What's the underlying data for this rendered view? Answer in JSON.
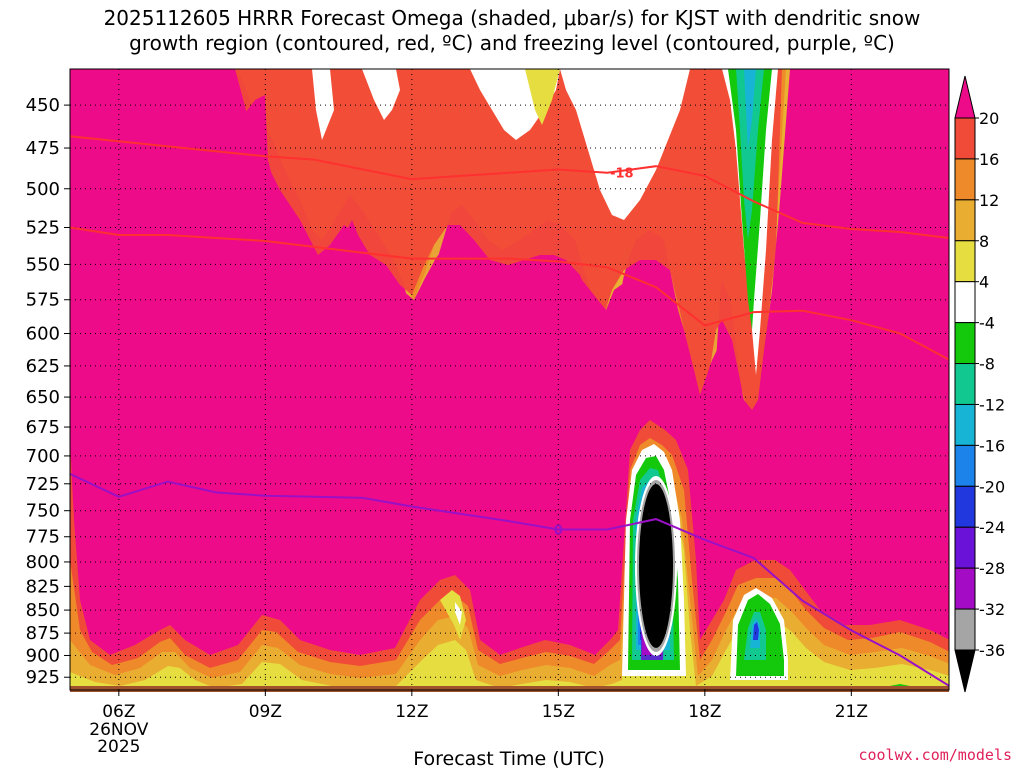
{
  "title_line1": "2025112605 HRRR Forecast Omega (shaded, μbar/s) for KJST with dendritic snow",
  "title_line2": "growth region (contoured, red, ºC) and freezing level (contoured, purple, ºC)",
  "credit": "coolwx.com/models",
  "chart_data": {
    "type": "heatmap",
    "xlabel": "Forecast Time (UTC)",
    "x_ticks": [
      {
        "hour": 6,
        "label": "06Z",
        "sub": [
          "26NOV",
          "2025"
        ]
      },
      {
        "hour": 9,
        "label": "09Z"
      },
      {
        "hour": 12,
        "label": "12Z"
      },
      {
        "hour": 15,
        "label": "15Z"
      },
      {
        "hour": 18,
        "label": "18Z"
      },
      {
        "hour": 21,
        "label": "21Z"
      }
    ],
    "xlim_hours": [
      5,
      23
    ],
    "y_ticks": [
      450,
      475,
      500,
      525,
      550,
      575,
      600,
      625,
      650,
      675,
      700,
      725,
      750,
      775,
      800,
      825,
      850,
      875,
      900,
      925
    ],
    "y_scale": "pressure (inverted, log)",
    "ylim_hPa": [
      430,
      940
    ],
    "grid": true,
    "colorbar": {
      "levels": [
        -36,
        -32,
        -28,
        -24,
        -20,
        -16,
        -12,
        -8,
        -4,
        4,
        8,
        12,
        16,
        20
      ],
      "labels": [
        "20",
        "16",
        "12",
        "8",
        "4",
        "-4",
        "-8",
        "-12",
        "-16",
        "-20",
        "-24",
        "-28",
        "-32",
        "-36"
      ],
      "colors": [
        "#ee0b8a",
        "#f04a38",
        "#ef8a2a",
        "#e9ad32",
        "#e6dd40",
        "#ffffff",
        "#14c80c",
        "#11c990",
        "#17b4d6",
        "#1b83ea",
        "#2238df",
        "#6a12d8",
        "#a40bc4",
        "#a5a5a5",
        "#000000"
      ]
    },
    "contours": [
      {
        "name": "dgz_minus18",
        "label": "-18",
        "color": "#ff3030",
        "points": [
          [
            5,
            468
          ],
          [
            7,
            474
          ],
          [
            9,
            480
          ],
          [
            10,
            482
          ],
          [
            11,
            488
          ],
          [
            12,
            494
          ],
          [
            13,
            492
          ],
          [
            14,
            490
          ],
          [
            15,
            488
          ],
          [
            16,
            490
          ],
          [
            17,
            486
          ],
          [
            18,
            492
          ],
          [
            19,
            508
          ],
          [
            20,
            522
          ],
          [
            21,
            526
          ],
          [
            22,
            528
          ],
          [
            23,
            532
          ]
        ]
      },
      {
        "name": "dgz_minus12",
        "label": "",
        "color": "#ff3030",
        "points": [
          [
            5,
            525
          ],
          [
            6,
            530
          ],
          [
            7,
            530
          ],
          [
            8,
            532
          ],
          [
            9,
            534
          ],
          [
            10,
            538
          ],
          [
            11,
            542
          ],
          [
            12,
            546
          ],
          [
            13,
            546
          ],
          [
            14,
            546
          ],
          [
            15,
            548
          ],
          [
            16,
            552
          ],
          [
            17,
            566
          ],
          [
            18,
            594
          ],
          [
            19,
            584
          ],
          [
            20,
            583
          ],
          [
            21,
            590
          ],
          [
            22,
            600
          ],
          [
            23,
            620
          ]
        ]
      },
      {
        "name": "freezing_level",
        "label": "0",
        "color": "#9a10c6",
        "points": [
          [
            5,
            716
          ],
          [
            6,
            737
          ],
          [
            7,
            723
          ],
          [
            8,
            733
          ],
          [
            9,
            736
          ],
          [
            10,
            737
          ],
          [
            11,
            738
          ],
          [
            12,
            746
          ],
          [
            13,
            753
          ],
          [
            14,
            760
          ],
          [
            15,
            768
          ],
          [
            16,
            768
          ],
          [
            17,
            758
          ],
          [
            18,
            778
          ],
          [
            19,
            796
          ],
          [
            20,
            840
          ],
          [
            21,
            872
          ],
          [
            22,
            900
          ],
          [
            23,
            935
          ]
        ]
      }
    ],
    "regions": {
      "background": 20,
      "notes": "Omega shaded mostly 20 (magenta) with positive bands near top and surface; strong negative core near 17Z 725-880 hPa"
    }
  }
}
